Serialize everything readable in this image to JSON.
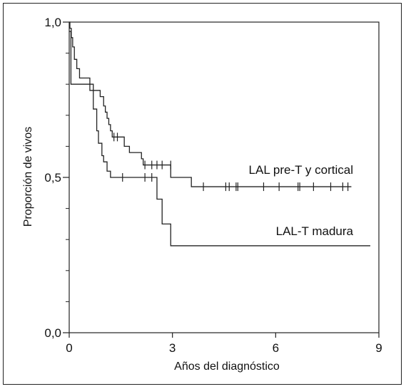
{
  "chart_data": {
    "type": "line",
    "xlabel": "Años del diagnóstico",
    "ylabel": "Proporción de vivos",
    "xlim": [
      0,
      9
    ],
    "ylim": [
      0,
      1
    ],
    "x_ticks": [
      0,
      3,
      6,
      9
    ],
    "x_tick_labels": [
      "0",
      "3",
      "6",
      "9"
    ],
    "y_ticks": [
      0,
      0.5,
      1
    ],
    "y_tick_labels": [
      "0,0",
      "0,5",
      "1,0"
    ],
    "y_minor_ticks": [
      0.1,
      0.2,
      0.3,
      0.4,
      0.6,
      0.7,
      0.8,
      0.9
    ],
    "grid": false,
    "legend": "labels-on-plot",
    "series": [
      {
        "name": "LAL pre-T y cortical",
        "steps": [
          [
            0,
            1.0
          ],
          [
            0.02,
            0.98
          ],
          [
            0.06,
            0.95
          ],
          [
            0.1,
            0.92
          ],
          [
            0.15,
            0.88
          ],
          [
            0.22,
            0.85
          ],
          [
            0.3,
            0.82
          ],
          [
            0.6,
            0.8
          ],
          [
            0.7,
            0.78
          ],
          [
            0.9,
            0.76
          ],
          [
            1.0,
            0.73
          ],
          [
            1.05,
            0.71
          ],
          [
            1.1,
            0.69
          ],
          [
            1.15,
            0.67
          ],
          [
            1.2,
            0.65
          ],
          [
            1.25,
            0.63
          ],
          [
            1.6,
            0.6
          ],
          [
            1.75,
            0.58
          ],
          [
            2.1,
            0.56
          ],
          [
            2.15,
            0.54
          ],
          [
            2.95,
            0.5
          ],
          [
            3.55,
            0.47
          ],
          [
            8.2,
            0.47
          ]
        ],
        "censored": [
          [
            1.3,
            0.63
          ],
          [
            1.4,
            0.63
          ],
          [
            2.2,
            0.54
          ],
          [
            2.4,
            0.54
          ],
          [
            2.55,
            0.54
          ],
          [
            2.7,
            0.54
          ],
          [
            2.95,
            0.54
          ],
          [
            3.9,
            0.47
          ],
          [
            4.55,
            0.47
          ],
          [
            4.65,
            0.47
          ],
          [
            4.85,
            0.47
          ],
          [
            4.9,
            0.47
          ],
          [
            5.65,
            0.47
          ],
          [
            6.1,
            0.47
          ],
          [
            6.65,
            0.47
          ],
          [
            6.7,
            0.47
          ],
          [
            7.1,
            0.47
          ],
          [
            7.6,
            0.47
          ],
          [
            7.95,
            0.47
          ],
          [
            8.1,
            0.47
          ]
        ]
      },
      {
        "name": "LAL-T madura",
        "steps": [
          [
            0,
            0.97
          ],
          [
            0.05,
            0.8
          ],
          [
            0.6,
            0.78
          ],
          [
            0.7,
            0.72
          ],
          [
            0.8,
            0.65
          ],
          [
            0.85,
            0.61
          ],
          [
            0.95,
            0.57
          ],
          [
            1.0,
            0.55
          ],
          [
            1.1,
            0.52
          ],
          [
            1.2,
            0.5
          ],
          [
            2.55,
            0.43
          ],
          [
            2.7,
            0.35
          ],
          [
            2.95,
            0.28
          ],
          [
            8.75,
            0.28
          ]
        ],
        "censored": [
          [
            1.55,
            0.5
          ],
          [
            2.2,
            0.5
          ],
          [
            2.4,
            0.5
          ]
        ]
      }
    ]
  }
}
